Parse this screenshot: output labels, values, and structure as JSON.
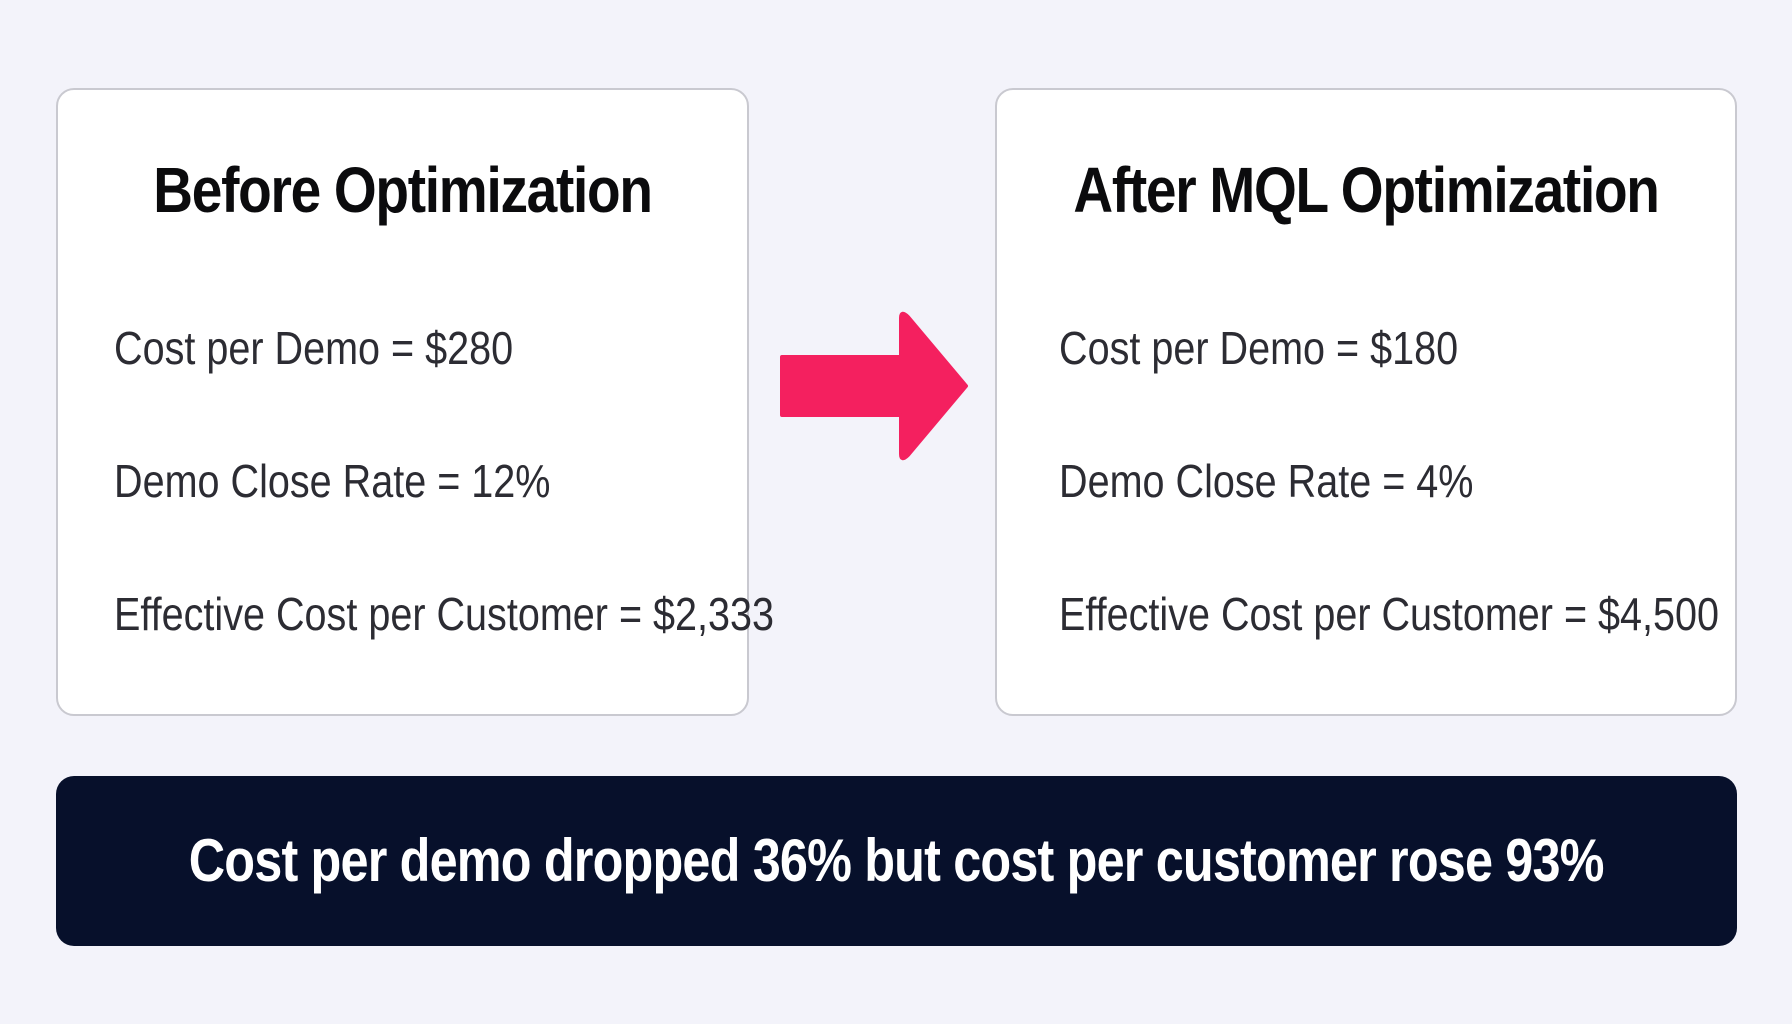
{
  "before": {
    "title": "Before Optimization",
    "metrics": [
      "Cost per Demo = $280",
      "Demo Close Rate = 12%",
      "Effective Cost per Customer = $2,333"
    ]
  },
  "after": {
    "title": "After MQL Optimization",
    "metrics": [
      "Cost per Demo = $180",
      "Demo Close Rate = 4%",
      "Effective Cost per Customer = $4,500"
    ]
  },
  "arrow": {
    "icon": "right-arrow-icon",
    "color": "#f4205f"
  },
  "summary": {
    "text": "Cost per demo dropped 36% but cost per customer rose 93%"
  },
  "colors": {
    "background": "#f3f3fa",
    "card": "#ffffff",
    "banner": "#07102b"
  }
}
